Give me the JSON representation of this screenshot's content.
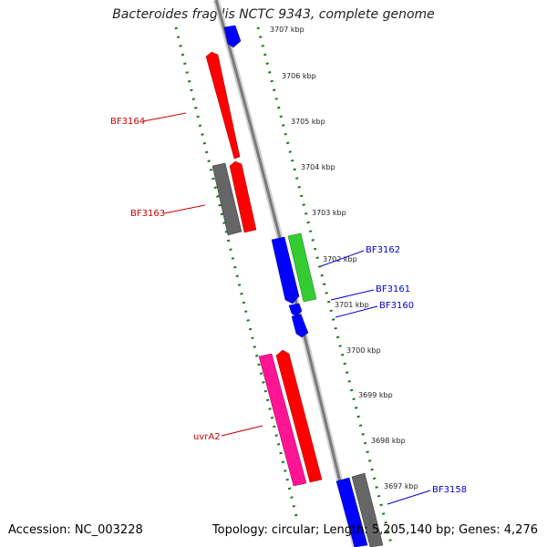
{
  "title": "Bacteroides fragilis NCTC 9343, complete genome",
  "footer": {
    "accession": "Accession: NC_003228",
    "summary": "Topology: circular; Length: 5,205,140 bp; Genes: 4,276"
  },
  "ruler": {
    "unit": "kbp",
    "ticks": [
      {
        "kbp": 3707,
        "label": "3707 kbp"
      },
      {
        "kbp": 3706,
        "label": "3706 kbp"
      },
      {
        "kbp": 3705,
        "label": "3705 kbp"
      },
      {
        "kbp": 3704,
        "label": "3704 kbp"
      },
      {
        "kbp": 3703,
        "label": "3703 kbp"
      },
      {
        "kbp": 3702,
        "label": "3702 kbp"
      },
      {
        "kbp": 3701,
        "label": "3701 kbp"
      },
      {
        "kbp": 3700,
        "label": "3700 kbp"
      },
      {
        "kbp": 3699,
        "label": "3699 kbp"
      },
      {
        "kbp": 3698,
        "label": "3698 kbp"
      },
      {
        "kbp": 3697,
        "label": "3697 kbp"
      }
    ]
  },
  "gene_labels": [
    {
      "text": "BF3164",
      "color": "#cc0000",
      "side": "left"
    },
    {
      "text": "BF3163",
      "color": "#cc0000",
      "side": "left"
    },
    {
      "text": "uvrA2",
      "color": "#cc0000",
      "side": "left"
    },
    {
      "text": "BF3162",
      "color": "#0000cc",
      "side": "right"
    },
    {
      "text": "BF3161",
      "color": "#0000cc",
      "side": "right"
    },
    {
      "text": "BF3160",
      "color": "#0000cc",
      "side": "right"
    },
    {
      "text": "BF3158",
      "color": "#0000cc",
      "side": "right"
    }
  ],
  "colors": {
    "backbone": "#8c8c8c",
    "tick": "#1a7a1a",
    "reverse_gene": "#ff0000",
    "forward_gene": "#0000ff",
    "rna_gene": "#ff1493",
    "other_gene": "#33cc33",
    "pseudo_gene": "#666666"
  }
}
